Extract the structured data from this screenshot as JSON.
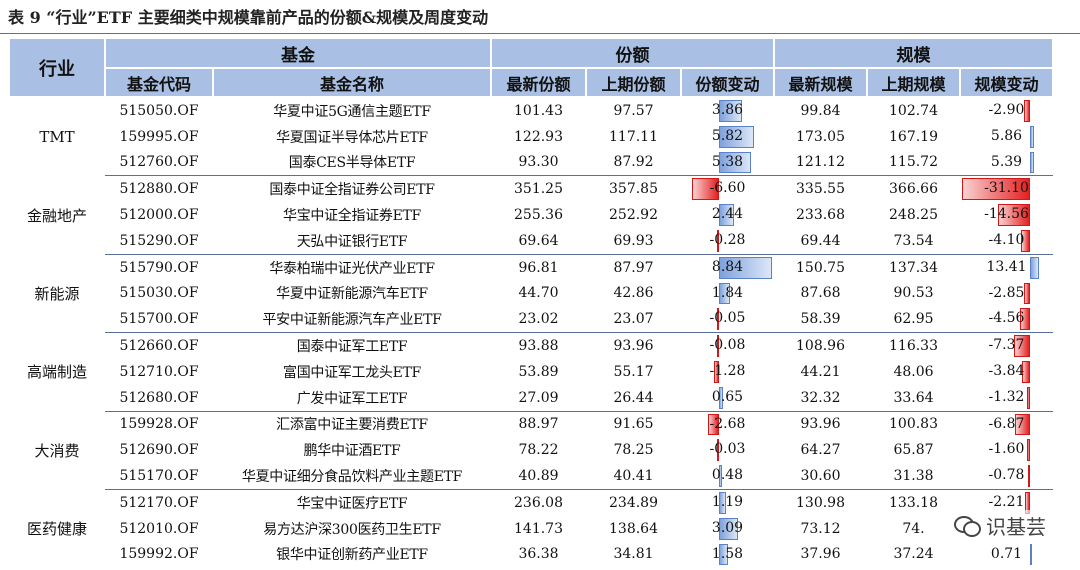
{
  "caption": "表 9 “行业”ETF 主要细类中规模靠前产品的份额&规模及周度变动",
  "header": {
    "industry": "行业",
    "fund": "基金",
    "share": "份额",
    "scale": "规模",
    "code": "基金代码",
    "name": "基金名称",
    "share_latest": "最新份额",
    "share_prev": "上期份额",
    "share_change": "份额变动",
    "scale_latest": "最新规模",
    "scale_prev": "上期规模",
    "scale_change": "规模变动"
  },
  "colors": {
    "header_bg": "#a9c0e4",
    "positive_bar": "#7ea2dc",
    "negative_bar": "#e42020",
    "group_rule": "#5a6f99"
  },
  "groups": [
    {
      "industry": "TMT",
      "rows": [
        {
          "code": "515050.OF",
          "name": "华夏中证5G通信主题ETF",
          "share_latest": "101.43",
          "share_prev": "97.57",
          "share_change": "3.86",
          "scale_latest": "99.84",
          "scale_prev": "102.74",
          "scale_change": "-2.90"
        },
        {
          "code": "159995.OF",
          "name": "华夏国证半导体芯片ETF",
          "share_latest": "122.93",
          "share_prev": "117.11",
          "share_change": "5.82",
          "scale_latest": "173.05",
          "scale_prev": "167.19",
          "scale_change": "5.86"
        },
        {
          "code": "512760.OF",
          "name": "国泰CES半导体ETF",
          "share_latest": "93.30",
          "share_prev": "87.92",
          "share_change": "5.38",
          "scale_latest": "121.12",
          "scale_prev": "115.72",
          "scale_change": "5.39"
        }
      ]
    },
    {
      "industry": "金融地产",
      "rows": [
        {
          "code": "512880.OF",
          "name": "国泰中证全指证券公司ETF",
          "share_latest": "351.25",
          "share_prev": "357.85",
          "share_change": "-6.60",
          "scale_latest": "335.55",
          "scale_prev": "366.66",
          "scale_change": "-31.10"
        },
        {
          "code": "512000.OF",
          "name": "华宝中证全指证券ETF",
          "share_latest": "255.36",
          "share_prev": "252.92",
          "share_change": "2.44",
          "scale_latest": "233.68",
          "scale_prev": "248.25",
          "scale_change": "-14.56"
        },
        {
          "code": "515290.OF",
          "name": "天弘中证银行ETF",
          "share_latest": "69.64",
          "share_prev": "69.93",
          "share_change": "-0.28",
          "scale_latest": "69.44",
          "scale_prev": "73.54",
          "scale_change": "-4.10"
        }
      ]
    },
    {
      "industry": "新能源",
      "rows": [
        {
          "code": "515790.OF",
          "name": "华泰柏瑞中证光伏产业ETF",
          "share_latest": "96.81",
          "share_prev": "87.97",
          "share_change": "8.84",
          "scale_latest": "150.75",
          "scale_prev": "137.34",
          "scale_change": "13.41"
        },
        {
          "code": "515030.OF",
          "name": "华夏中证新能源汽车ETF",
          "share_latest": "44.70",
          "share_prev": "42.86",
          "share_change": "1.84",
          "scale_latest": "87.68",
          "scale_prev": "90.53",
          "scale_change": "-2.85"
        },
        {
          "code": "515700.OF",
          "name": "平安中证新能源汽车产业ETF",
          "share_latest": "23.02",
          "share_prev": "23.07",
          "share_change": "-0.05",
          "scale_latest": "58.39",
          "scale_prev": "62.95",
          "scale_change": "-4.56"
        }
      ]
    },
    {
      "industry": "高端制造",
      "rows": [
        {
          "code": "512660.OF",
          "name": "国泰中证军工ETF",
          "share_latest": "93.88",
          "share_prev": "93.96",
          "share_change": "-0.08",
          "scale_latest": "108.96",
          "scale_prev": "116.33",
          "scale_change": "-7.37"
        },
        {
          "code": "512710.OF",
          "name": "富国中证军工龙头ETF",
          "share_latest": "53.89",
          "share_prev": "55.17",
          "share_change": "-1.28",
          "scale_latest": "44.21",
          "scale_prev": "48.06",
          "scale_change": "-3.84"
        },
        {
          "code": "512680.OF",
          "name": "广发中证军工ETF",
          "share_latest": "27.09",
          "share_prev": "26.44",
          "share_change": "0.65",
          "scale_latest": "32.32",
          "scale_prev": "33.64",
          "scale_change": "-1.32"
        }
      ]
    },
    {
      "industry": "大消费",
      "rows": [
        {
          "code": "159928.OF",
          "name": "汇添富中证主要消费ETF",
          "share_latest": "88.97",
          "share_prev": "91.65",
          "share_change": "-2.68",
          "scale_latest": "93.96",
          "scale_prev": "100.83",
          "scale_change": "-6.87"
        },
        {
          "code": "512690.OF",
          "name": "鹏华中证酒ETF",
          "share_latest": "78.22",
          "share_prev": "78.25",
          "share_change": "-0.03",
          "scale_latest": "64.27",
          "scale_prev": "65.87",
          "scale_change": "-1.60"
        },
        {
          "code": "515170.OF",
          "name": "华夏中证细分食品饮料产业主题ETF",
          "share_latest": "40.89",
          "share_prev": "40.41",
          "share_change": "0.48",
          "scale_latest": "30.60",
          "scale_prev": "31.38",
          "scale_change": "-0.78"
        }
      ]
    },
    {
      "industry": "医药健康",
      "rows": [
        {
          "code": "512170.OF",
          "name": "华宝中证医疗ETF",
          "share_latest": "236.08",
          "share_prev": "234.89",
          "share_change": "1.19",
          "scale_latest": "130.98",
          "scale_prev": "133.18",
          "scale_change": "-2.21"
        },
        {
          "code": "512010.OF",
          "name": "易方达沪深300医药卫生ETF",
          "share_latest": "141.73",
          "share_prev": "138.64",
          "share_change": "3.09",
          "scale_latest": "73.12",
          "scale_prev": "74.",
          "scale_change": ""
        },
        {
          "code": "159992.OF",
          "name": "银华中证创新药产业ETF",
          "share_latest": "36.38",
          "share_prev": "34.81",
          "share_change": "1.58",
          "scale_latest": "37.96",
          "scale_prev": "37.24",
          "scale_change": "0.71"
        }
      ]
    }
  ],
  "watermark": {
    "icon": "wechat-icon",
    "text": "识基芸"
  }
}
